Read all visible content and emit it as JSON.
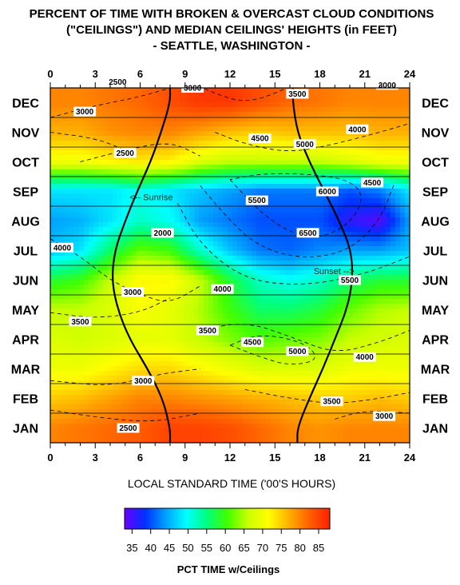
{
  "title_lines": [
    "PERCENT OF TIME WITH BROKEN & OVERCAST CLOUD CONDITIONS",
    "(\"CEILINGS\") AND MEDIAN CEILINGS' HEIGHTS (in FEET)",
    "- SEATTLE, WASHINGTON -"
  ],
  "colors": {
    "scale": [
      "#6a00ff",
      "#0030ff",
      "#00a0ff",
      "#00ffff",
      "#00ff80",
      "#40ff00",
      "#c8ff00",
      "#ffff00",
      "#ffb000",
      "#ff6000",
      "#ff2000"
    ]
  },
  "chart_data": {
    "type": "heatmap",
    "xlabel": "LOCAL STANDARD TIME ('00'S HOURS)",
    "x_ticks": [
      "0",
      "3",
      "6",
      "9",
      "12",
      "15",
      "18",
      "21",
      "24"
    ],
    "xlim": [
      0,
      24
    ],
    "months": [
      "DEC",
      "NOV",
      "OCT",
      "SEP",
      "AUG",
      "JUL",
      "JUN",
      "MAY",
      "APR",
      "MAR",
      "FEB",
      "JAN"
    ],
    "colorbar": {
      "label": "PCT TIME w/Ceilings",
      "ticks": [
        "35",
        "40",
        "45",
        "50",
        "55",
        "60",
        "65",
        "70",
        "75",
        "80",
        "85"
      ],
      "range": [
        33,
        88
      ]
    },
    "cols_hours": [
      0,
      2,
      4,
      6,
      8,
      10,
      12,
      14,
      16,
      18,
      20,
      22,
      24
    ],
    "rows_months": [
      "JAN",
      "FEB",
      "MAR",
      "APR",
      "MAY",
      "JUN",
      "JUL",
      "AUG",
      "SEP",
      "OCT",
      "NOV",
      "DEC"
    ],
    "pct_grid": [
      [
        80,
        81,
        82,
        83,
        85,
        85,
        84,
        82,
        80,
        79,
        80,
        80,
        80
      ],
      [
        75,
        76,
        78,
        80,
        80,
        79,
        78,
        77,
        76,
        75,
        75,
        76,
        75
      ],
      [
        70,
        70,
        72,
        74,
        74,
        72,
        70,
        68,
        68,
        68,
        70,
        70,
        70
      ],
      [
        68,
        67,
        68,
        69,
        69,
        66,
        63,
        61,
        62,
        63,
        66,
        67,
        68
      ],
      [
        66,
        66,
        68,
        71,
        69,
        65,
        60,
        56,
        56,
        58,
        62,
        65,
        66
      ],
      [
        58,
        60,
        66,
        72,
        72,
        66,
        58,
        52,
        50,
        52,
        56,
        58,
        58
      ],
      [
        46,
        48,
        56,
        62,
        60,
        52,
        46,
        42,
        41,
        43,
        44,
        44,
        46
      ],
      [
        44,
        45,
        48,
        52,
        50,
        44,
        42,
        40,
        40,
        40,
        36,
        34,
        44
      ],
      [
        48,
        48,
        48,
        50,
        48,
        46,
        44,
        42,
        42,
        42,
        40,
        42,
        48
      ],
      [
        70,
        70,
        72,
        73,
        72,
        68,
        66,
        66,
        66,
        66,
        68,
        70,
        70
      ],
      [
        77,
        77,
        79,
        80,
        80,
        78,
        76,
        75,
        76,
        76,
        76,
        77,
        77
      ],
      [
        80,
        80,
        81,
        82,
        84,
        86,
        86,
        84,
        82,
        81,
        80,
        80,
        80
      ]
    ],
    "sunrise_hours": [
      8.0,
      7.5,
      6.5,
      5.3,
      4.5,
      4.1,
      4.3,
      5.0,
      5.8,
      6.7,
      7.4,
      8.0
    ],
    "sunset_hours": [
      16.5,
      17.3,
      18.2,
      19.0,
      19.8,
      20.2,
      20.1,
      19.3,
      18.3,
      17.3,
      16.5,
      16.2
    ],
    "sunrise_label": "<-- Sunrise",
    "sunset_label": "Sunset -->",
    "ceiling_labels": [
      {
        "text": "2500",
        "hour": 4.5,
        "month_pos": 11.7
      },
      {
        "text": "3000",
        "hour": 9.5,
        "month_pos": 11.5
      },
      {
        "text": "3500",
        "hour": 16.5,
        "month_pos": 11.3
      },
      {
        "text": "3000",
        "hour": 22.5,
        "month_pos": 11.6
      },
      {
        "text": "3000",
        "hour": 2.3,
        "month_pos": 10.7
      },
      {
        "text": "4500",
        "hour": 14.0,
        "month_pos": 9.8
      },
      {
        "text": "5000",
        "hour": 17.0,
        "month_pos": 9.6
      },
      {
        "text": "4000",
        "hour": 20.5,
        "month_pos": 10.1
      },
      {
        "text": "2500",
        "hour": 5.0,
        "month_pos": 9.3
      },
      {
        "text": "4500",
        "hour": 21.5,
        "month_pos": 8.3
      },
      {
        "text": "6000",
        "hour": 18.5,
        "month_pos": 8.0
      },
      {
        "text": "5500",
        "hour": 13.8,
        "month_pos": 7.7
      },
      {
        "text": "2000",
        "hour": 7.5,
        "month_pos": 6.6
      },
      {
        "text": "6500",
        "hour": 17.2,
        "month_pos": 6.6
      },
      {
        "text": "4000",
        "hour": 0.8,
        "month_pos": 6.1
      },
      {
        "text": "5500",
        "hour": 20.0,
        "month_pos": 5.0
      },
      {
        "text": "3000",
        "hour": 5.5,
        "month_pos": 4.6
      },
      {
        "text": "4000",
        "hour": 11.5,
        "month_pos": 4.7
      },
      {
        "text": "3500",
        "hour": 2.0,
        "month_pos": 3.6
      },
      {
        "text": "3500",
        "hour": 10.5,
        "month_pos": 3.3
      },
      {
        "text": "4500",
        "hour": 13.5,
        "month_pos": 2.9
      },
      {
        "text": "5000",
        "hour": 16.5,
        "month_pos": 2.6
      },
      {
        "text": "4000",
        "hour": 21.0,
        "month_pos": 2.4
      },
      {
        "text": "3000",
        "hour": 6.2,
        "month_pos": 1.6
      },
      {
        "text": "3500",
        "hour": 18.8,
        "month_pos": 0.9
      },
      {
        "text": "3000",
        "hour": 22.3,
        "month_pos": 0.4
      },
      {
        "text": "2500",
        "hour": 5.2,
        "month_pos": 0.0
      }
    ]
  }
}
